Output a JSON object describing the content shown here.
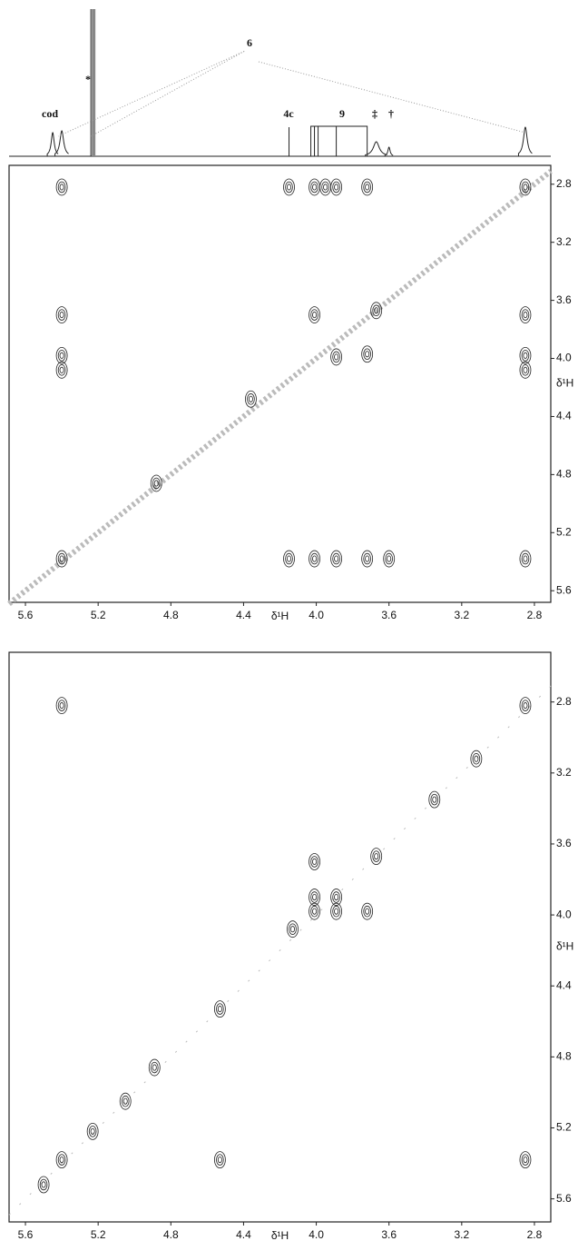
{
  "spectrum_labels": [
    "cod",
    "*",
    "6",
    "4c",
    "9",
    "‡",
    "†"
  ],
  "chart_data": [
    {
      "type": "scatter",
      "xlabel": "δ¹H",
      "ylabel": "δ¹H",
      "xlim": [
        5.69,
        2.71
      ],
      "ylim": [
        2.67,
        5.68
      ],
      "xticks": [
        5.6,
        5.2,
        4.8,
        4.4,
        {
          "value": 4,
          "label": "4.0"
        },
        3.6,
        3.2,
        2.8
      ],
      "yticks": [
        2.8,
        3.2,
        3.6,
        {
          "value": 4,
          "label": "4.0"
        },
        4.4,
        4.8,
        5.2,
        5.6
      ],
      "x": [
        5.4,
        4.15,
        4.01,
        3.95,
        3.89,
        3.72,
        5.4,
        5.4,
        5.4,
        2.85,
        2.85,
        2.85,
        4.01,
        3.72,
        3.89,
        4.15,
        4.01,
        3.89,
        3.72,
        3.6,
        2.85,
        2.85,
        5.4,
        4.36,
        3.67,
        4.88
      ],
      "y": [
        2.82,
        2.82,
        2.82,
        2.82,
        2.82,
        2.82,
        3.7,
        3.98,
        4.08,
        3.7,
        3.98,
        4.08,
        3.7,
        3.97,
        3.99,
        5.38,
        5.38,
        5.38,
        5.38,
        5.38,
        5.38,
        2.82,
        5.38,
        4.28,
        3.67,
        4.86
      ]
    },
    {
      "type": "scatter",
      "xlabel": "δ¹H",
      "ylabel": "δ¹H",
      "xlim": [
        5.69,
        2.71
      ],
      "ylim": [
        2.52,
        5.73
      ],
      "xticks": [
        5.6,
        5.2,
        4.8,
        4.4,
        {
          "value": 4,
          "label": "4.0"
        },
        3.6,
        3.2,
        2.8
      ],
      "yticks": [
        2.8,
        3.2,
        3.6,
        {
          "value": 4,
          "label": "4.0"
        },
        4.4,
        4.8,
        5.2,
        5.6
      ],
      "x": [
        5.4,
        2.85,
        3.67,
        4.01,
        4.01,
        3.89,
        3.89,
        4.01,
        3.72,
        4.13,
        5.4,
        5.23,
        4.89,
        5.05,
        4.53,
        2.85,
        3.35,
        3.12,
        4.53,
        5.5
      ],
      "y": [
        2.82,
        2.82,
        3.67,
        3.7,
        3.98,
        3.98,
        3.9,
        3.9,
        3.98,
        4.08,
        5.38,
        5.22,
        4.86,
        5.05,
        5.38,
        5.38,
        3.35,
        3.12,
        4.53,
        5.52
      ]
    }
  ]
}
